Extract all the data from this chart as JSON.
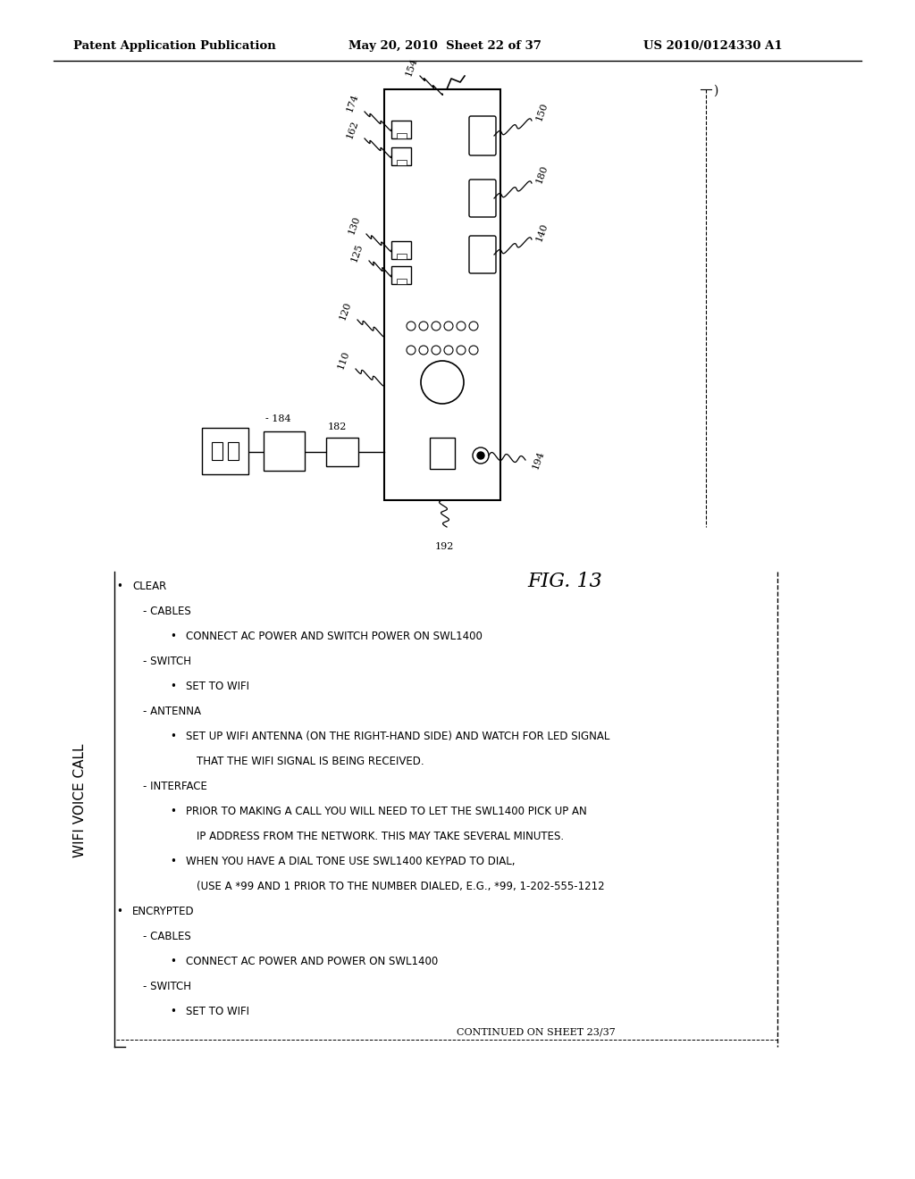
{
  "header_left": "Patent Application Publication",
  "header_mid": "May 20, 2010  Sheet 22 of 37",
  "header_right": "US 2010/0124330 A1",
  "fig_label": "FIG. 13",
  "bg_color": "#ffffff",
  "text_color": "#000000",
  "title_text": "WIFI VOICE CALL",
  "instructions": [
    {
      "indent": 0,
      "bullet": true,
      "text": "CLEAR"
    },
    {
      "indent": 1,
      "bullet": false,
      "text": "- CABLES"
    },
    {
      "indent": 2,
      "bullet": true,
      "text": "CONNECT AC POWER AND SWITCH POWER ON SWL1400"
    },
    {
      "indent": 1,
      "bullet": false,
      "text": "- SWITCH"
    },
    {
      "indent": 2,
      "bullet": true,
      "text": "SET TO WIFI"
    },
    {
      "indent": 1,
      "bullet": false,
      "text": "- ANTENNA"
    },
    {
      "indent": 2,
      "bullet": true,
      "text": "SET UP WIFI ANTENNA (ON THE RIGHT-HAND SIDE) AND WATCH FOR LED SIGNAL"
    },
    {
      "indent": 3,
      "bullet": false,
      "text": "THAT THE WIFI SIGNAL IS BEING RECEIVED."
    },
    {
      "indent": 1,
      "bullet": false,
      "text": "- INTERFACE"
    },
    {
      "indent": 2,
      "bullet": true,
      "text": "PRIOR TO MAKING A CALL YOU WILL NEED TO LET THE SWL1400 PICK UP AN"
    },
    {
      "indent": 3,
      "bullet": false,
      "text": "IP ADDRESS FROM THE NETWORK. THIS MAY TAKE SEVERAL MINUTES."
    },
    {
      "indent": 2,
      "bullet": true,
      "text": "WHEN YOU HAVE A DIAL TONE USE SWL1400 KEYPAD TO DIAL,"
    },
    {
      "indent": 3,
      "bullet": false,
      "text": "(USE A *99 AND 1 PRIOR TO THE NUMBER DIALED, E.G., *99, 1-202-555-1212"
    },
    {
      "indent": 0,
      "bullet": true,
      "text": "ENCRYPTED"
    },
    {
      "indent": 1,
      "bullet": false,
      "text": "- CABLES"
    },
    {
      "indent": 2,
      "bullet": true,
      "text": "CONNECT AC POWER AND POWER ON SWL1400"
    },
    {
      "indent": 1,
      "bullet": false,
      "text": "- SWITCH"
    },
    {
      "indent": 2,
      "bullet": true,
      "text": "SET TO WIFI"
    }
  ],
  "continued_text": "CONTINUED ON SHEET 23/37"
}
